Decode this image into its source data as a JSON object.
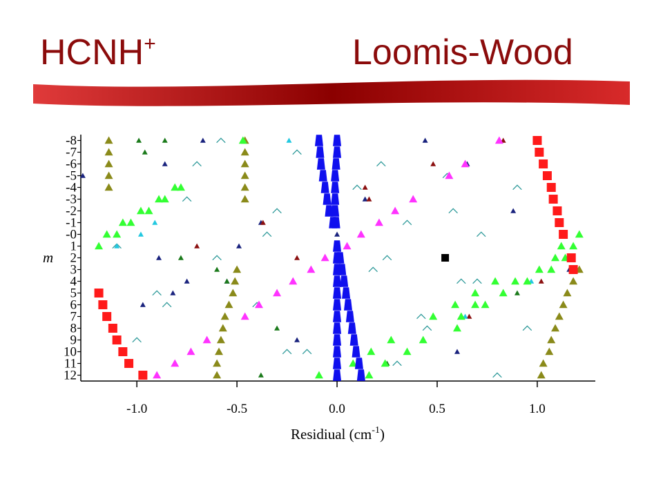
{
  "chart_data": {
    "type": "scatter",
    "title": "HCNH",
    "title_superscript": "+",
    "title_right": "Loomis-Wood",
    "xlabel": [
      "Residiual (cm",
      "-1",
      ")"
    ],
    "ylabel": "m",
    "xlim": [
      -1.28,
      1.29
    ],
    "ylim": [
      -8.5,
      12.5
    ],
    "y_inverted": true,
    "xticks": [
      {
        "value": -1.0,
        "label": "-1.0"
      },
      -0.5,
      {
        "value": 0.0,
        "label": "0.0"
      },
      0.5,
      {
        "value": 1.0,
        "label": "1.0"
      }
    ],
    "yticks": [
      -8,
      -7,
      -6,
      -5,
      -4,
      -3,
      -2,
      -1,
      {
        "value": 0,
        "label": "-0"
      },
      1,
      2,
      3,
      4,
      5,
      6,
      7,
      8,
      9,
      10,
      11,
      12
    ],
    "series": [
      {
        "color": "#2f9a9a",
        "marker": "caret",
        "size": 9,
        "x": [
          -0.58,
          -0.2,
          0.22,
          0.55,
          0.9,
          -0.75,
          -0.3,
          0.35,
          0.72,
          -1.1,
          -0.6,
          0.18,
          0.62,
          -0.9,
          -0.4,
          0.42,
          0.95,
          -1.0,
          -0.15,
          0.3,
          0.8,
          -0.7,
          0.1,
          0.58,
          -0.35,
          0.25,
          0.7,
          -0.85,
          0.45,
          -0.25
        ],
        "values": [
          -8,
          -7,
          -6,
          -5,
          -4,
          -3,
          -2,
          -1,
          0,
          1,
          2,
          3,
          4,
          5,
          6,
          7,
          8,
          9,
          10,
          11,
          12,
          -6,
          -4,
          -2,
          0,
          2,
          4,
          6,
          8,
          10
        ]
      },
      {
        "color": "#1a237e",
        "marker": "triangle",
        "size": 8,
        "x": [
          -0.67,
          -0.86,
          -1.27,
          0.14,
          -0.38,
          0.0,
          -0.49,
          -0.89,
          -0.75,
          -0.82,
          1.16,
          0.44,
          0.88,
          -0.97,
          0.65,
          -0.2,
          0.6,
          -0.55
        ],
        "values": [
          -8,
          -6,
          -5,
          -3,
          -1,
          0,
          1,
          2,
          4,
          5,
          3,
          -8,
          -2,
          6,
          -6,
          9,
          10,
          4
        ]
      },
      {
        "color": "#8b1010",
        "marker": "triangle",
        "size": 8,
        "x": [
          0.48,
          -0.37,
          -0.7,
          0.16,
          0.14,
          0.66,
          -0.2,
          0.83,
          1.02
        ],
        "values": [
          -6,
          -1,
          1,
          -3,
          -4,
          7,
          2,
          -8,
          4
        ]
      },
      {
        "color": "#22c8e0",
        "marker": "triangle",
        "size": 8,
        "x": [
          -0.24,
          -1.1,
          0.97,
          0.64,
          -0.91,
          -0.98
        ],
        "values": [
          -8,
          1,
          4,
          7,
          -1,
          0
        ]
      },
      {
        "color": "#1b7a1b",
        "marker": "triangle",
        "size": 8,
        "x": [
          -0.99,
          -0.86,
          -0.96,
          -0.6,
          -0.3,
          0.25,
          -0.78,
          -0.55,
          -0.38,
          0.9
        ],
        "values": [
          -8,
          -8,
          -7,
          3,
          8,
          11,
          2,
          4,
          12,
          5
        ]
      },
      {
        "color": "#8a8a1a",
        "marker": "triangle",
        "size": 12,
        "x": [
          -1.14,
          -1.14,
          -1.14,
          -1.14,
          -1.14,
          -0.46,
          -0.46,
          -0.46,
          -0.46,
          -0.46,
          -0.46,
          -0.5,
          -0.51,
          -0.52,
          -0.54,
          -0.56,
          -0.57,
          -0.58,
          -0.59,
          -0.6,
          -0.6,
          1.21,
          1.18,
          1.15,
          1.13,
          1.11,
          1.09,
          1.07,
          1.06,
          1.03,
          1.02
        ],
        "values": [
          -8,
          -7,
          -6,
          -5,
          -4,
          -8,
          -7,
          -6,
          -5,
          -4,
          -3,
          3,
          4,
          5,
          6,
          7,
          8,
          9,
          10,
          11,
          12,
          3,
          4,
          5,
          6,
          7,
          8,
          9,
          10,
          11,
          12
        ]
      },
      {
        "color": "#ff33ff",
        "marker": "triangle",
        "size": 12,
        "x": [
          0.81,
          0.64,
          0.56,
          0.38,
          0.29,
          0.21,
          0.12,
          0.05,
          -0.06,
          -0.13,
          -0.22,
          -0.3,
          -0.39,
          -0.46,
          -0.65,
          -0.73,
          -0.81,
          -0.9
        ],
        "values": [
          -8,
          -6,
          -5,
          -3,
          -2,
          -1,
          0,
          1,
          2,
          3,
          4,
          5,
          6,
          7,
          9,
          10,
          11,
          12
        ]
      },
      {
        "color": "#33ff33",
        "marker": "triangle",
        "size": 12,
        "x": [
          -0.47,
          -0.81,
          -0.78,
          -0.89,
          -0.86,
          -0.98,
          -0.94,
          -1.07,
          -1.03,
          -1.15,
          -1.1,
          -1.19,
          1.21,
          1.12,
          1.18,
          1.09,
          1.14,
          1.01,
          1.07,
          0.79,
          0.89,
          0.95,
          0.69,
          0.83,
          0.59,
          0.69,
          0.74,
          0.48,
          0.62,
          0.6,
          0.27,
          0.43,
          0.35,
          0.17,
          0.08,
          0.24,
          -0.09,
          0.16
        ],
        "values": [
          -8,
          -4,
          -4,
          -3,
          -3,
          -2,
          -2,
          -1,
          -1,
          0,
          0,
          1,
          0,
          1,
          1,
          2,
          2,
          3,
          3,
          4,
          4,
          4,
          5,
          5,
          6,
          6,
          6,
          7,
          7,
          8,
          9,
          9,
          10,
          10,
          11,
          11,
          12,
          12
        ]
      },
      {
        "color": "#1010ee",
        "marker": "trap",
        "size": 15,
        "x": [
          -0.09,
          -0.085,
          -0.08,
          -0.07,
          -0.06,
          -0.05,
          -0.04,
          -0.02,
          0,
          0,
          -0.005,
          -0.01,
          -0.01,
          -0.01,
          -0.01,
          -0.005,
          0,
          0,
          0,
          0,
          0,
          0,
          0,
          0,
          0,
          0,
          0,
          0,
          0.015,
          0.025,
          0.035,
          0.045,
          0.055,
          0.065,
          0.075,
          0.085,
          0.095,
          0.11,
          0.12
        ],
        "values": [
          -8,
          -7,
          -6,
          -5,
          -4,
          -3,
          -2,
          -1,
          -8,
          -7,
          -6,
          -5,
          -4,
          -3,
          -2,
          -1,
          1,
          2,
          3,
          4,
          5,
          6,
          7,
          8,
          9,
          10,
          11,
          12,
          2,
          3,
          4,
          5,
          6,
          7,
          8,
          9,
          10,
          11,
          12
        ]
      },
      {
        "color": "#ff1a1a",
        "marker": "square",
        "size": 13,
        "x": [
          1.0,
          1.01,
          1.03,
          1.05,
          1.07,
          1.08,
          1.1,
          1.11,
          1.13,
          1.17,
          1.18,
          -1.19,
          -1.17,
          -1.15,
          -1.12,
          -1.1,
          -1.07,
          -1.04,
          -0.97
        ],
        "values": [
          -8,
          -7,
          -6,
          -5,
          -4,
          -3,
          -2,
          -1,
          0,
          2,
          3,
          5,
          6,
          7,
          8,
          9,
          10,
          11,
          12
        ]
      },
      {
        "color": "#000000",
        "marker": "square",
        "size": 11,
        "x": [
          0.54
        ],
        "values": [
          2
        ]
      }
    ]
  }
}
